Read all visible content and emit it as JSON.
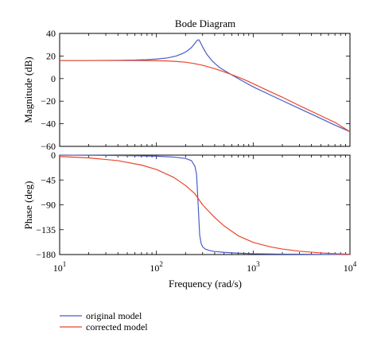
{
  "chart_data": {
    "type": "line",
    "title": "Bode Diagram",
    "xlabel": "Frequency (rad/s)",
    "x_scale": "log",
    "xlim": [
      10,
      10000
    ],
    "x_ticks": [
      {
        "base": "10",
        "exp": "1"
      },
      {
        "base": "10",
        "exp": "2"
      },
      {
        "base": "10",
        "exp": "3"
      },
      {
        "base": "10",
        "exp": "4"
      }
    ],
    "x_tick_values": [
      10,
      100,
      1000,
      10000
    ],
    "grid": false,
    "legend_position": "bottom-left",
    "series_colors": [
      "#4a5cc5",
      "#e8472b"
    ],
    "legend": [
      {
        "label": "original model",
        "color": "#4a5cc5"
      },
      {
        "label": "corrected model",
        "color": "#e8472b"
      }
    ],
    "panels": [
      {
        "ylabel": "Magnitude (dB)",
        "ylim": [
          -60,
          40
        ],
        "yticks": [
          "40",
          "20",
          "0",
          "−20",
          "−40",
          "−60"
        ],
        "ytick_values": [
          40,
          20,
          0,
          -20,
          -40,
          -60
        ],
        "series": [
          {
            "label": "original model",
            "x": [
              10,
              20,
              40,
              60,
              80,
              100,
              130,
              160,
              190,
              210,
              230,
              250,
              265,
              275,
              285,
              300,
              330,
              380,
              450,
              600,
              800,
              1000,
              1500,
              2000,
              3000,
              5000,
              7000,
              10000
            ],
            "y": [
              16,
              16,
              16.2,
              16.4,
              16.8,
              17.3,
              18.3,
              20,
              22.5,
              24.7,
              27.5,
              31.3,
              34,
              34.3,
              32,
              28,
              21.8,
              15.3,
              9.7,
              3.3,
              -2.8,
              -7.3,
              -14.5,
              -19.5,
              -26.5,
              -35.3,
              -41.2,
              -47
            ]
          },
          {
            "label": "corrected model",
            "x": [
              10,
              20,
              40,
              60,
              80,
              100,
              130,
              160,
              200,
              250,
              300,
              400,
              500,
              600,
              800,
              1000,
              1500,
              2000,
              3000,
              5000,
              7000,
              10000
            ],
            "y": [
              16,
              16,
              16,
              16,
              15.9,
              15.8,
              15.6,
              15.2,
              14.5,
              13.2,
              11.8,
              8.8,
              6,
              3.5,
              -0.7,
              -4.5,
              -11.6,
              -16.5,
              -23.9,
              -32.9,
              -38.8,
              -47
            ]
          }
        ]
      },
      {
        "ylabel": "Phase (deg)",
        "ylim": [
          -180,
          0
        ],
        "yticks": [
          "0",
          "−45",
          "−90",
          "−135",
          "−180"
        ],
        "ytick_values": [
          0,
          -45,
          -90,
          -135,
          -180
        ],
        "series": [
          {
            "label": "original model",
            "x": [
              10,
              30,
              60,
              100,
              150,
              200,
              230,
              250,
              260,
              270,
              280,
              290,
              300,
              320,
              350,
              400,
              500,
              700,
              1000,
              2000,
              5000,
              10000
            ],
            "y": [
              0,
              -0.5,
              -1.2,
              -2,
              -3.5,
              -6,
              -10,
              -20,
              -35,
              -90,
              -145,
              -160,
              -166,
              -170,
              -172.5,
              -174.5,
              -176,
              -177.5,
              -178.5,
              -179.2,
              -179.7,
              -180
            ]
          },
          {
            "label": "corrected model",
            "x": [
              10,
              20,
              40,
              70,
              100,
              150,
              200,
              250,
              300,
              400,
              500,
              700,
              1000,
              1500,
              2000,
              3000,
              5000,
              7000,
              10000
            ],
            "y": [
              -2.5,
              -5,
              -10,
              -18,
              -26,
              -40,
              -55,
              -70,
              -90,
              -113,
              -128,
              -146,
              -158,
              -166,
              -170,
              -174,
              -177,
              -178.5,
              -179.5
            ]
          }
        ]
      }
    ]
  }
}
